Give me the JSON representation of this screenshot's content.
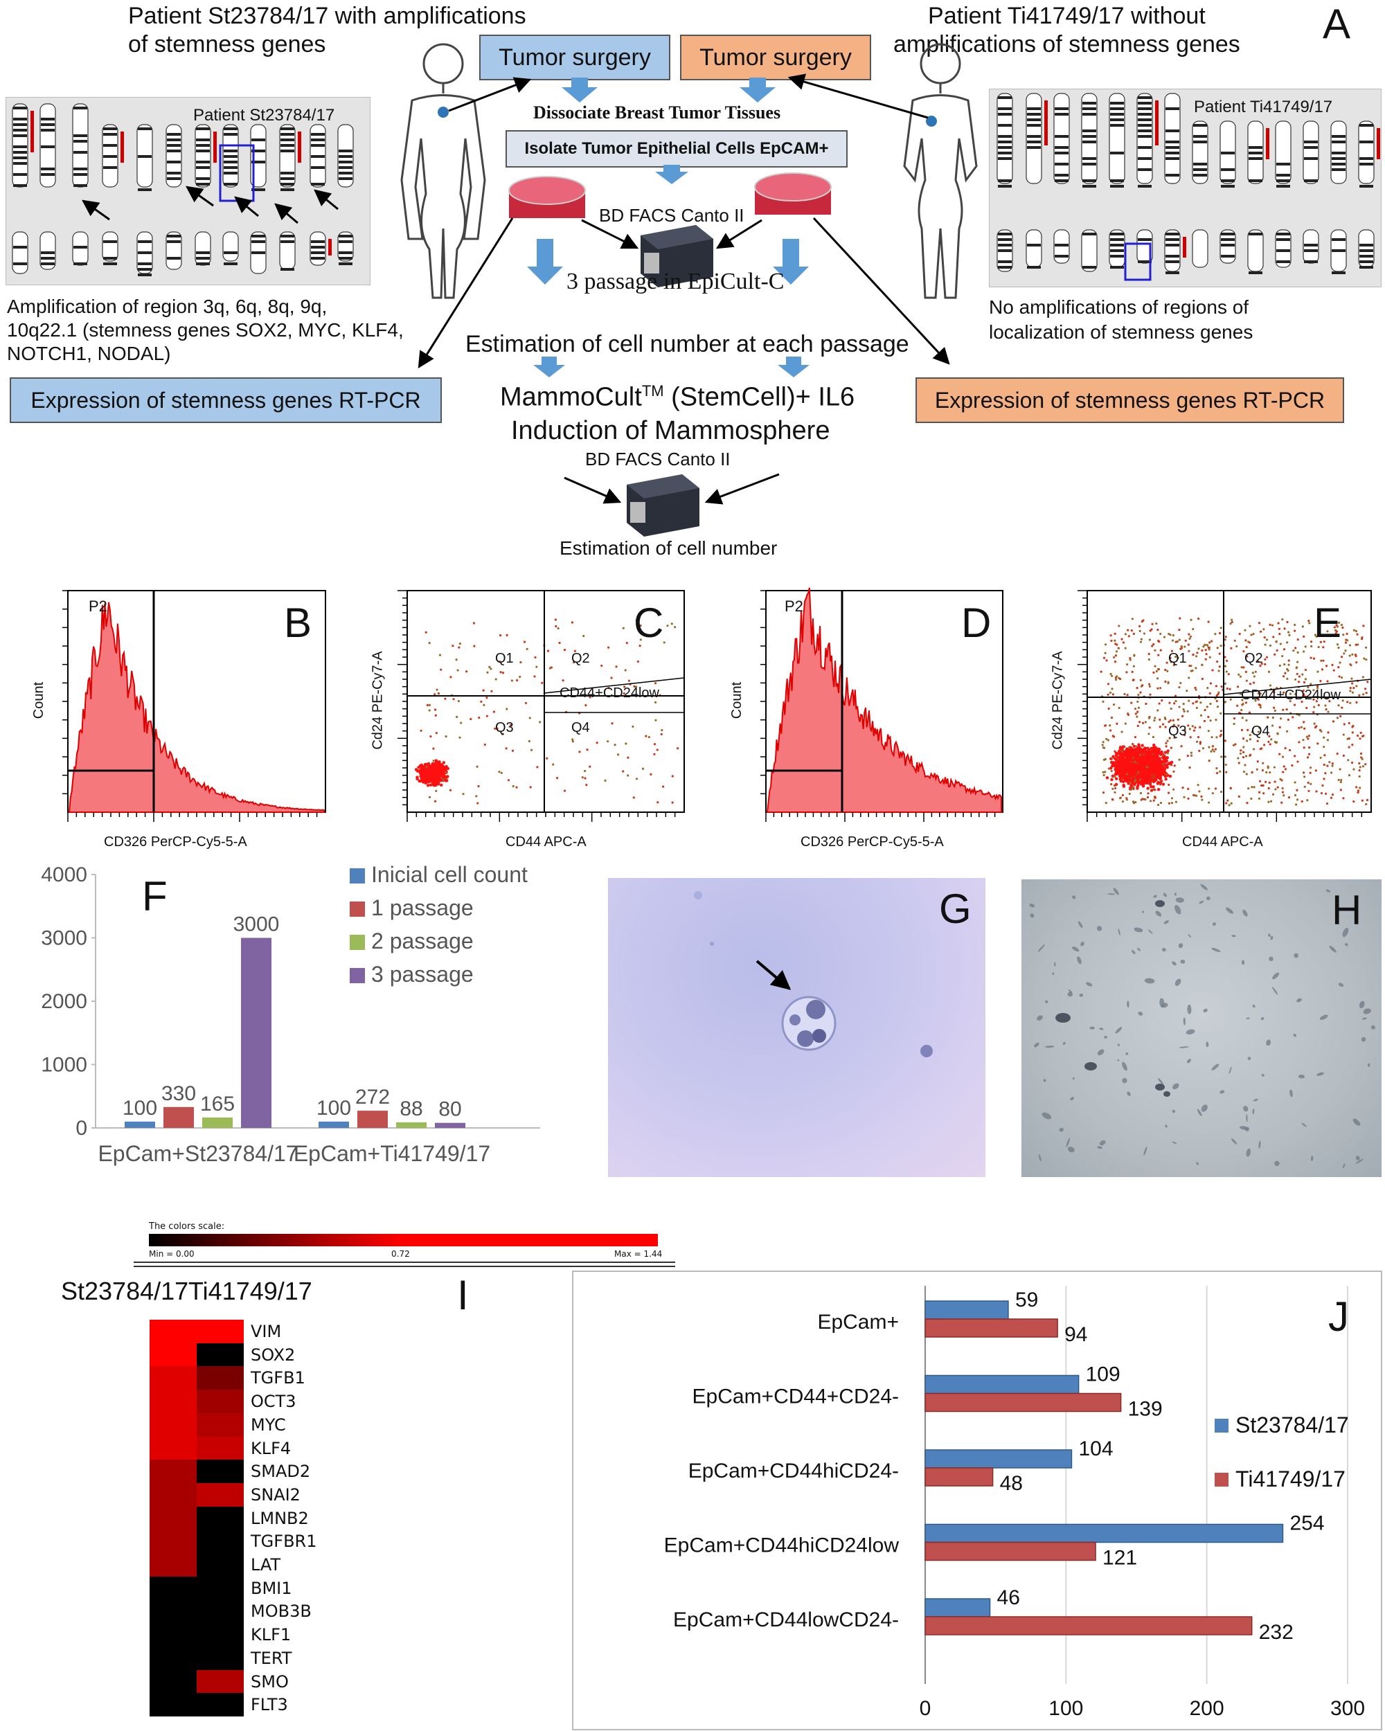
{
  "panel_a": {
    "letter": "A",
    "patient_left_title_line1": "Patient St23784/17 with amplifications",
    "patient_left_title_line2": "of stemness genes",
    "patient_right_title_line1": "Patient  Ti41749/17 without",
    "patient_right_title_line2": "amplifications of stemness genes",
    "tumor_surgery_left": "Tumor surgery",
    "tumor_surgery_right": "Tumor surgery",
    "dissociate": "Dissociate Breast Tumor Tissues",
    "isolate": "Isolate Tumor Epithelial Cells EpCAM+",
    "karyo_left_label": "Patient St23784/17",
    "karyo_right_label": "Patient  Ti41749/17",
    "facs_label_top": "BD FACS Canto II",
    "passage": "3 passage in EpiCult-C",
    "estimation_passage": "Estimation of cell number at each passage",
    "mammocult_pre": "MammoCult",
    "mammocult_tm": "TM",
    "mammocult_post": " (StemCell)+ IL6",
    "induction": "Induction of Mammosphere",
    "facs_label_bottom": "BD FACS Canto II",
    "estimation_final": "Estimation of cell number",
    "amp_text_line1": "Amplification of region 3q, 6q, 8q, 9q,",
    "amp_text_line2": "10q22.1 (stemness genes SOX2, MYC, KLF4,",
    "amp_text_line3": "NOTCH1, NODAL)",
    "noamp_text_line1": "No    amplifications    of    regions    of",
    "noamp_text_line2": "localization of stemness genes",
    "expr_left": "Expression of stemness genes RT-PCR",
    "expr_right": "Expression of stemness genes RT-PCR",
    "colors": {
      "blue_box": "#a7c8e8",
      "orange_box": "#f4b183",
      "arrow_blue": "#5b9bd5"
    }
  },
  "flow_panels": {
    "b": {
      "letter": "B",
      "gate": "P2",
      "xlabel": "CD326 PerCP-Cy5-5-A",
      "ylabel": "Count"
    },
    "c": {
      "letter": "C",
      "xlabel": "CD44 APC-A",
      "ylabel": "Cd24 PE-Cy7-A",
      "q1": "Q1",
      "q2": "Q2",
      "q3": "Q3",
      "q4": "Q4",
      "gate": "CD44+CD24low"
    },
    "d": {
      "letter": "D",
      "gate": "P2",
      "xlabel": "CD326 PerCP-Cy5-5-A",
      "ylabel": "Count"
    },
    "e": {
      "letter": "E",
      "xlabel": "CD44 APC-A",
      "ylabel": "Cd24 PE-Cy7-A",
      "q1": "Q1",
      "q2": "Q2",
      "q3": "Q3",
      "q4": "Q4",
      "gate": "CD44+CD24low"
    }
  },
  "panel_g": {
    "letter": "G"
  },
  "panel_h": {
    "letter": "H"
  },
  "panel_i": {
    "letter": "I",
    "scale_title": "The colors scale:",
    "scale_min": "Min =  0.00",
    "scale_mid": "0.72",
    "scale_max": "Max = 1.44",
    "col1": "St23784/17",
    "col2": "Ti41749/17",
    "rows": [
      {
        "gene": "VIM",
        "c1": "#ff0000",
        "c2": "#ff0000"
      },
      {
        "gene": "SOX2",
        "c1": "#ff0000",
        "c2": "#000000"
      },
      {
        "gene": "TGFB1",
        "c1": "#e00000",
        "c2": "#7a0000"
      },
      {
        "gene": "OCT3",
        "c1": "#e00000",
        "c2": "#a00000"
      },
      {
        "gene": "MYC",
        "c1": "#e00000",
        "c2": "#b20000"
      },
      {
        "gene": "KLF4",
        "c1": "#e00000",
        "c2": "#c80000"
      },
      {
        "gene": "SMAD2",
        "c1": "#a80000",
        "c2": "#000000"
      },
      {
        "gene": "SNAI2",
        "c1": "#a80000",
        "c2": "#c00000"
      },
      {
        "gene": "LMNB2",
        "c1": "#a80000",
        "c2": "#000000"
      },
      {
        "gene": "TGFBR1",
        "c1": "#a80000",
        "c2": "#000000"
      },
      {
        "gene": "LAT",
        "c1": "#a80000",
        "c2": "#000000"
      },
      {
        "gene": "BMI1",
        "c1": "#000000",
        "c2": "#000000"
      },
      {
        "gene": "MOB3B",
        "c1": "#000000",
        "c2": "#000000"
      },
      {
        "gene": "KLF1",
        "c1": "#000000",
        "c2": "#000000"
      },
      {
        "gene": "TERT",
        "c1": "#000000",
        "c2": "#000000"
      },
      {
        "gene": "SMO",
        "c1": "#000000",
        "c2": "#b00000"
      },
      {
        "gene": "FLT3",
        "c1": "#000000",
        "c2": "#000000"
      }
    ]
  },
  "chart_data": [
    {
      "id": "F",
      "type": "bar",
      "letter": "F",
      "categories": [
        "EpCam+St23784/17",
        "EpCam+Ti41749/17"
      ],
      "series": [
        {
          "name": "Inicial cell count",
          "values": [
            100,
            100
          ],
          "color": "#4f81bd"
        },
        {
          "name": "1 passage",
          "values": [
            330,
            272
          ],
          "color": "#c0504d"
        },
        {
          "name": "2 passage",
          "values": [
            165,
            88
          ],
          "color": "#9bbb59"
        },
        {
          "name": "3 passage",
          "values": [
            3000,
            80
          ],
          "color": "#8064a2"
        }
      ],
      "ylim": [
        0,
        4000
      ],
      "yticks": [
        "0",
        "1000",
        "2000",
        "3000",
        "4000"
      ],
      "data_labels": {
        "g0": [
          "100",
          "330",
          "165",
          "3000"
        ],
        "g1": [
          "100",
          "272",
          "88",
          "80"
        ]
      }
    },
    {
      "id": "J",
      "type": "bar",
      "orientation": "horizontal",
      "letter": "J",
      "categories": [
        "EpCam+",
        "EpCam+CD44+CD24-",
        "EpCam+CD44hiCD24-",
        "EpCam+CD44hiCD24low",
        "EpCam+CD44lowCD24-"
      ],
      "series": [
        {
          "name": "St23784/17",
          "values": [
            59,
            109,
            104,
            254,
            46
          ],
          "color": "#4f81bd"
        },
        {
          "name": "Ti41749/17",
          "values": [
            94,
            139,
            48,
            121,
            232
          ],
          "color": "#c0504d"
        }
      ],
      "xlim": [
        0,
        300
      ],
      "xticks": [
        "0",
        "100",
        "200",
        "300"
      ],
      "data_labels": {
        "s0": [
          "59",
          "109",
          "104",
          "254",
          "46"
        ],
        "s1": [
          "94",
          "139",
          "48",
          "121",
          "232"
        ]
      }
    }
  ]
}
